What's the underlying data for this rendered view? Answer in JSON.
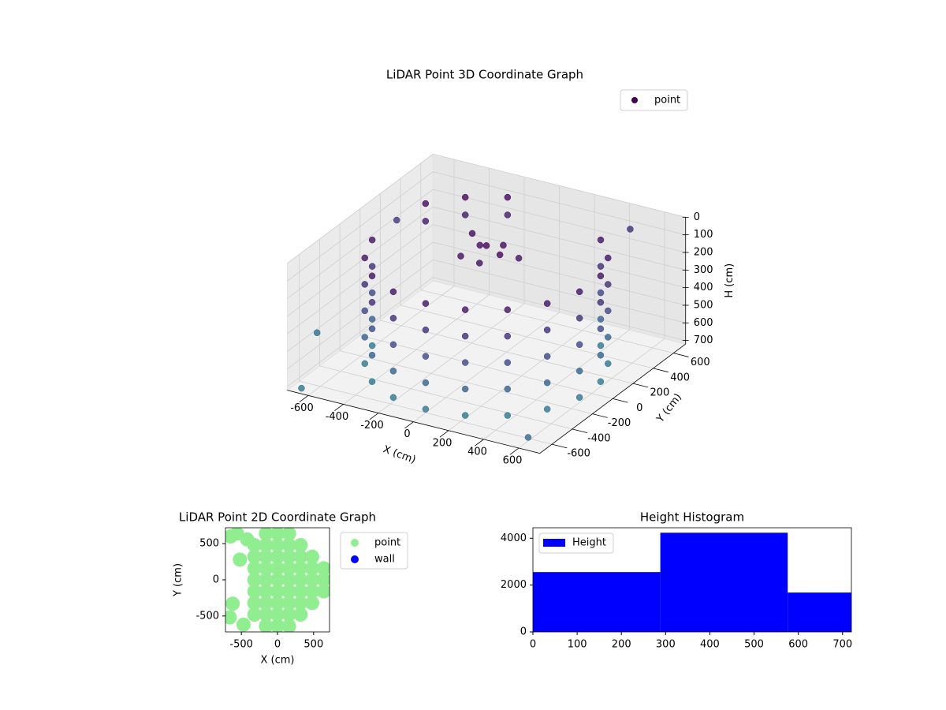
{
  "chart_data": [
    {
      "type": "scatter3d",
      "title": "LiDAR Point 3D Coordinate Graph",
      "xlabel": "X (cm)",
      "ylabel": "Y (cm)",
      "zlabel": "H (cm)",
      "xlim": [
        -720,
        720
      ],
      "ylim": [
        -720,
        720
      ],
      "zlim": [
        0,
        720
      ],
      "zinvert": true,
      "xticks": [
        -600,
        -400,
        -200,
        0,
        200,
        400,
        600
      ],
      "yticks": [
        -600,
        -400,
        -200,
        0,
        200,
        400,
        600
      ],
      "zticks": [
        0,
        100,
        200,
        300,
        400,
        500,
        600,
        700
      ],
      "colormap": "viridis",
      "grid": true,
      "legend": "upper right",
      "series": [
        {
          "name": "point",
          "color": "#440154",
          "x": [
            -591,
            -591,
            -591,
            -591,
            -591,
            -520,
            -520,
            -520,
            -520,
            -520,
            -386,
            -386,
            -386,
            -386,
            -386,
            -205,
            -205,
            -205,
            -205,
            -205,
            0,
            0,
            0,
            0,
            0,
            205,
            205,
            205,
            205,
            205,
            386,
            386,
            386,
            386,
            386,
            520,
            520,
            520,
            520,
            520,
            591,
            591,
            591,
            591,
            591,
            591,
            591,
            591,
            591,
            591,
            520,
            520,
            520,
            520,
            520,
            386,
            386,
            386,
            386,
            386,
            -205,
            -205,
            -386,
            -386,
            -520,
            -520,
            0,
            50,
            -60,
            100,
            -100,
            30,
            150,
            -150,
            -850,
            -800,
            300,
            700,
            -650
          ],
          "y": [
            -104,
            -104,
            -104,
            -104,
            -104,
            -300,
            -300,
            -300,
            -300,
            -300,
            -460,
            -460,
            -460,
            -460,
            -460,
            -564,
            -564,
            -564,
            -564,
            -564,
            -600,
            -600,
            -600,
            -600,
            -600,
            -564,
            -564,
            -564,
            -564,
            -564,
            -460,
            -460,
            -460,
            -460,
            -460,
            -300,
            -300,
            -300,
            -300,
            -300,
            -104,
            -104,
            -104,
            -104,
            -104,
            104,
            104,
            104,
            104,
            104,
            300,
            300,
            300,
            300,
            300,
            460,
            460,
            460,
            460,
            460,
            564,
            564,
            460,
            460,
            300,
            300,
            0,
            80,
            40,
            -40,
            -80,
            -120,
            60,
            120,
            -200,
            500,
            900,
            -800,
            -700
          ],
          "z": [
            100,
            250,
            400,
            550,
            700,
            100,
            250,
            400,
            550,
            700,
            100,
            250,
            400,
            550,
            700,
            100,
            250,
            400,
            550,
            700,
            100,
            250,
            400,
            550,
            700,
            100,
            250,
            400,
            550,
            700,
            100,
            250,
            400,
            550,
            700,
            100,
            250,
            400,
            550,
            700,
            100,
            250,
            400,
            550,
            700,
            100,
            250,
            400,
            550,
            700,
            100,
            250,
            400,
            550,
            700,
            100,
            250,
            400,
            550,
            700,
            50,
            150,
            50,
            150,
            50,
            150,
            30,
            50,
            60,
            40,
            80,
            70,
            90,
            50,
            650,
            300,
            250,
            600,
            700
          ]
        }
      ]
    },
    {
      "type": "scatter",
      "title": "LiDAR Point 2D Coordinate Graph",
      "xlabel": "X (cm)",
      "ylabel": "Y (cm)",
      "xlim": [
        -720,
        720
      ],
      "ylim": [
        -720,
        720
      ],
      "xticks": [
        -500,
        0,
        500
      ],
      "yticks": [
        -500,
        0,
        500
      ],
      "legend": "outside right",
      "series": [
        {
          "name": "point",
          "color": "#90ee90",
          "x": [
            -320,
            -320,
            -320,
            -320,
            -320,
            -320,
            -320,
            -160,
            -160,
            -160,
            -160,
            -160,
            -160,
            -160,
            -160,
            -160,
            0,
            0,
            0,
            0,
            0,
            0,
            0,
            0,
            0,
            160,
            160,
            160,
            160,
            160,
            160,
            160,
            160,
            160,
            320,
            320,
            320,
            320,
            320,
            320,
            320,
            480,
            480,
            480,
            480,
            480,
            640,
            640,
            640,
            -650,
            -560,
            -620,
            -660,
            -470,
            -420,
            -520
          ],
          "y": [
            -480,
            -320,
            -160,
            0,
            160,
            320,
            480,
            -640,
            -480,
            -320,
            -160,
            0,
            160,
            320,
            480,
            640,
            -640,
            -480,
            -320,
            -160,
            0,
            160,
            320,
            480,
            640,
            -640,
            -480,
            -320,
            -160,
            0,
            160,
            320,
            480,
            640,
            -480,
            -320,
            -160,
            0,
            160,
            320,
            480,
            -320,
            -160,
            0,
            160,
            320,
            -160,
            0,
            160,
            600,
            640,
            -330,
            -520,
            -620,
            560,
            280
          ]
        },
        {
          "name": "wall",
          "color": "#0000ff",
          "x": [],
          "y": []
        }
      ]
    },
    {
      "type": "histogram",
      "title": "Height Histogram",
      "bins": [
        0,
        288,
        576,
        720
      ],
      "series": [
        {
          "name": "Height",
          "color": "#0000ff",
          "values": [
            2555,
            4235,
            1680
          ]
        }
      ],
      "xlim": [
        0,
        720
      ],
      "ylim": [
        0,
        4447
      ],
      "xticks": [
        0,
        100,
        200,
        300,
        400,
        500,
        600,
        700
      ],
      "yticks": [
        0,
        2000,
        4000
      ],
      "legend": "upper left"
    }
  ]
}
